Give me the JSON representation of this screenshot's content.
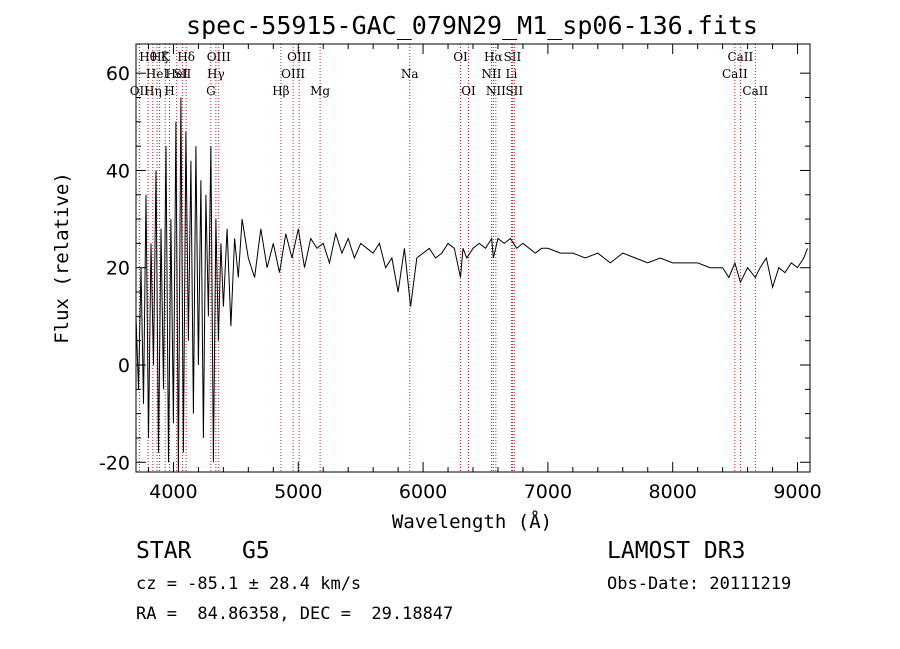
{
  "chart_data": {
    "type": "line",
    "title": "spec-55915-GAC_079N29_M1_sp06-136.fits",
    "xlabel": "Wavelength (Å)",
    "ylabel": "Flux (relative)",
    "xlim": [
      3700,
      9100
    ],
    "ylim": [
      -22,
      66
    ],
    "xticks": [
      4000,
      5000,
      6000,
      7000,
      8000,
      9000
    ],
    "yticks": [
      -20,
      0,
      20,
      40,
      60
    ],
    "series": [
      {
        "name": "flux",
        "x": [
          3700,
          3720,
          3740,
          3760,
          3780,
          3800,
          3820,
          3840,
          3860,
          3880,
          3900,
          3920,
          3940,
          3960,
          3980,
          4000,
          4020,
          4040,
          4060,
          4080,
          4100,
          4120,
          4140,
          4160,
          4180,
          4200,
          4220,
          4240,
          4260,
          4280,
          4300,
          4320,
          4340,
          4360,
          4380,
          4400,
          4430,
          4460,
          4490,
          4520,
          4550,
          4600,
          4650,
          4700,
          4750,
          4800,
          4850,
          4900,
          4950,
          5000,
          5050,
          5100,
          5150,
          5200,
          5250,
          5300,
          5350,
          5400,
          5450,
          5500,
          5550,
          5600,
          5650,
          5700,
          5750,
          5800,
          5850,
          5900,
          5950,
          6000,
          6050,
          6100,
          6150,
          6200,
          6250,
          6300,
          6320,
          6350,
          6400,
          6450,
          6500,
          6550,
          6563,
          6600,
          6650,
          6700,
          6750,
          6800,
          6850,
          6900,
          6950,
          7000,
          7100,
          7200,
          7300,
          7400,
          7500,
          7600,
          7700,
          7800,
          7900,
          8000,
          8100,
          8200,
          8300,
          8400,
          8450,
          8498,
          8542,
          8600,
          8662,
          8700,
          8750,
          8800,
          8850,
          8900,
          8950,
          9000,
          9050,
          9080
        ],
        "y": [
          10,
          -5,
          20,
          -8,
          35,
          -15,
          25,
          0,
          40,
          -18,
          28,
          -5,
          45,
          -20,
          30,
          -12,
          50,
          -22,
          55,
          -18,
          48,
          5,
          42,
          -10,
          45,
          0,
          38,
          -15,
          35,
          10,
          45,
          -20,
          30,
          5,
          25,
          12,
          28,
          8,
          26,
          18,
          30,
          22,
          18,
          28,
          20,
          25,
          19,
          27,
          22,
          28,
          20,
          26,
          24,
          25,
          21,
          27,
          23,
          26,
          22,
          25,
          24,
          23,
          25,
          20,
          22,
          15,
          24,
          12,
          22,
          23,
          24,
          22,
          23,
          25,
          24,
          18,
          24,
          22,
          24,
          25,
          24,
          26,
          22,
          26,
          25,
          26,
          24,
          25,
          24,
          23,
          24,
          24,
          23,
          23,
          22,
          23,
          21,
          23,
          22,
          21,
          22,
          21,
          21,
          21,
          20,
          20,
          18,
          21,
          17,
          20,
          18,
          20,
          22,
          16,
          20,
          19,
          21,
          20,
          22,
          24
        ]
      }
    ],
    "spectral_lines": [
      {
        "wl": 3727,
        "label": "OII",
        "row": 3
      },
      {
        "wl": 3797,
        "label": "Hθ",
        "row": 1
      },
      {
        "wl": 3835,
        "label": "Hη",
        "row": 3
      },
      {
        "wl": 3869,
        "label": "HeI",
        "row": 2
      },
      {
        "wl": 3889,
        "label": "Hζ",
        "row": 1
      },
      {
        "wl": 3934,
        "label": "K",
        "row": 1
      },
      {
        "wl": 3969,
        "label": "H",
        "row": 3
      },
      {
        "wl": 4026,
        "label": "HeI",
        "row": 2
      },
      {
        "wl": 4072,
        "label": "SII",
        "row": 2
      },
      {
        "wl": 4102,
        "label": "Hδ",
        "row": 1
      },
      {
        "wl": 4300,
        "label": "G",
        "row": 3
      },
      {
        "wl": 4340,
        "label": "Hγ",
        "row": 2
      },
      {
        "wl": 4363,
        "label": "OIII",
        "row": 1
      },
      {
        "wl": 4861,
        "label": "Hβ",
        "row": 3
      },
      {
        "wl": 4959,
        "label": "OIII",
        "row": 2
      },
      {
        "wl": 5007,
        "label": "OIII",
        "row": 1
      },
      {
        "wl": 5175,
        "label": "Mg",
        "row": 3
      },
      {
        "wl": 5893,
        "label": "Na",
        "row": 2
      },
      {
        "wl": 6300,
        "label": "OI",
        "row": 1
      },
      {
        "wl": 6364,
        "label": "OI",
        "row": 3
      },
      {
        "wl": 6548,
        "label": "NII",
        "row": 2
      },
      {
        "wl": 6563,
        "label": "Hα",
        "row": 1
      },
      {
        "wl": 6583,
        "label": "NII",
        "row": 3
      },
      {
        "wl": 6708,
        "label": "Li",
        "row": 2
      },
      {
        "wl": 6716,
        "label": "SII",
        "row": 1
      },
      {
        "wl": 6731,
        "label": "SII",
        "row": 3
      },
      {
        "wl": 8498,
        "label": "CaII",
        "row": 2
      },
      {
        "wl": 8542,
        "label": "CaII",
        "row": 1
      },
      {
        "wl": 8662,
        "label": "CaII",
        "row": 3
      }
    ]
  },
  "info": {
    "object_class": "STAR",
    "subclass": "G5",
    "survey": "LAMOST DR3",
    "cz": "cz = -85.1 ± 28.4 km/s",
    "obs_date": "Obs-Date: 20111219",
    "coords": "RA =  84.86358, DEC =  29.18847"
  },
  "colors": {
    "line": "#000000",
    "marker": "#b22222"
  }
}
